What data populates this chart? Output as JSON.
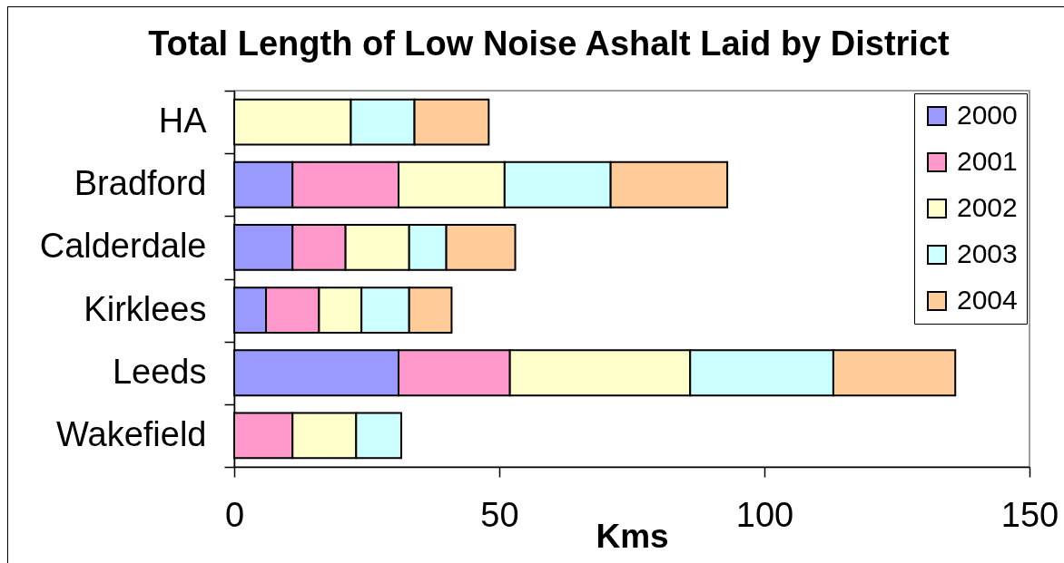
{
  "chart_data": {
    "type": "bar",
    "orientation": "horizontal",
    "stacked": true,
    "title": "Total Length of Low Noise Ashalt Laid by District",
    "xlabel": "Kms",
    "categories": [
      "HA",
      "Bradford",
      "Calderdale",
      "Kirklees",
      "Leeds",
      "Wakefield"
    ],
    "series": [
      {
        "name": "2000",
        "color": "#9999ff",
        "values": [
          null,
          11,
          11,
          6,
          31,
          null
        ]
      },
      {
        "name": "2001",
        "color": "#ff99cc",
        "values": [
          null,
          20,
          10,
          10,
          21,
          11
        ]
      },
      {
        "name": "2002",
        "color": "#ffffcc",
        "values": [
          22,
          20,
          12,
          8,
          34,
          12
        ]
      },
      {
        "name": "2003",
        "color": "#ccffff",
        "values": [
          12,
          20,
          7,
          9,
          27,
          8.5
        ]
      },
      {
        "name": "2004",
        "color": "#ffcc99",
        "values": [
          14,
          22,
          13,
          8,
          23,
          null
        ]
      }
    ],
    "xlim": [
      0,
      150
    ],
    "xticks": [
      0,
      50,
      100,
      150
    ],
    "legend": "top right"
  }
}
